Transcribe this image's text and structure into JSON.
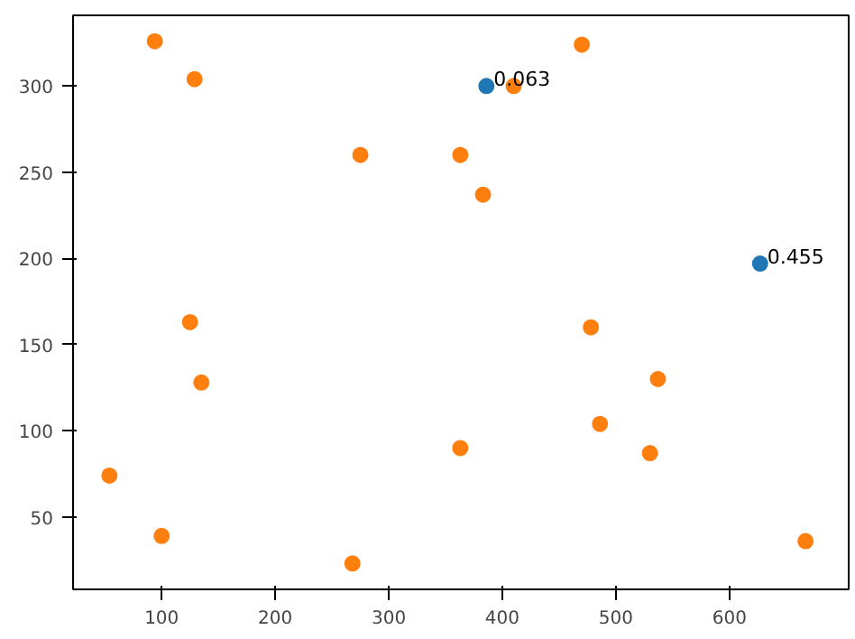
{
  "chart_data": {
    "type": "scatter",
    "xlim": [
      22,
      705
    ],
    "ylim": [
      8,
      341
    ],
    "xticks": [
      100,
      200,
      300,
      400,
      500,
      600
    ],
    "yticks": [
      50,
      100,
      150,
      200,
      250,
      300
    ],
    "grid": false,
    "marker": "circle",
    "series": [
      {
        "color": "#1f77b4",
        "x": [
          386,
          627
        ],
        "values": [
          300,
          197
        ]
      },
      {
        "color": "#ff7f0e",
        "x": [
          94,
          129,
          275,
          363,
          383,
          410,
          470,
          125,
          135,
          478,
          537,
          486,
          363,
          530,
          54,
          100,
          268,
          667
        ],
        "values": [
          326,
          304,
          260,
          260,
          237,
          300,
          324,
          163,
          128,
          160,
          130,
          104,
          90,
          87,
          74,
          39,
          23,
          36
        ]
      }
    ],
    "annotations": [
      {
        "text": "0.063",
        "x": 386,
        "y": 300
      },
      {
        "text": "0.455",
        "x": 627,
        "y": 197
      }
    ]
  }
}
